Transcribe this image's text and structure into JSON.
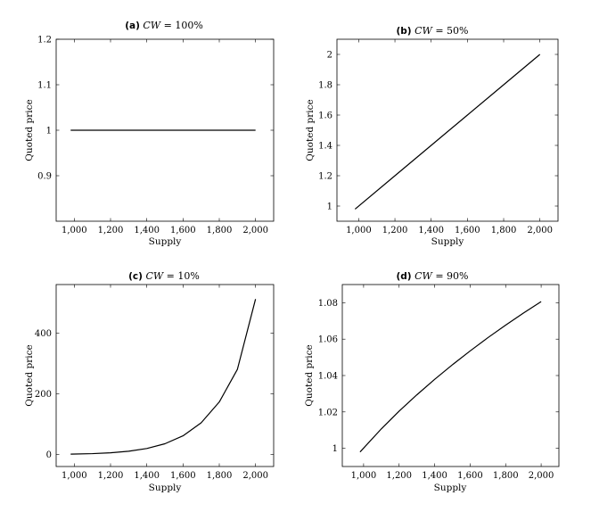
{
  "chart_data": [
    {
      "type": "line",
      "panel": "a",
      "title_prefix": "(a)",
      "title_var": "CW",
      "title_rest": " = 100%",
      "xlabel": "Supply",
      "ylabel": "Quoted price",
      "xlim": [
        900,
        2100
      ],
      "ylim": [
        0.8,
        1.2
      ],
      "xticks": [
        1000,
        1200,
        1400,
        1600,
        1800,
        2000
      ],
      "xtick_labels": [
        "1,000",
        "1,200",
        "1,400",
        "1,600",
        "1,800",
        "2,000"
      ],
      "yticks": [
        0.9,
        1,
        1.1,
        1.2
      ],
      "ytick_labels": [
        "0.9",
        "1",
        "1.1",
        "1.2"
      ],
      "grid": false,
      "series": [
        {
          "x": [
            980,
            1200,
            1400,
            1600,
            1800,
            2000
          ],
          "y": [
            1,
            1,
            1,
            1,
            1,
            1
          ]
        }
      ]
    },
    {
      "type": "line",
      "panel": "b",
      "title_prefix": "(b)",
      "title_var": "CW",
      "title_rest": " = 50%",
      "xlabel": "Supply",
      "ylabel": "Quoted price",
      "xlim": [
        880,
        2100
      ],
      "ylim": [
        0.9,
        2.1
      ],
      "xticks": [
        1000,
        1200,
        1400,
        1600,
        1800,
        2000
      ],
      "xtick_labels": [
        "1,000",
        "1,200",
        "1,400",
        "1,600",
        "1,800",
        "2,000"
      ],
      "yticks": [
        1,
        1.2,
        1.4,
        1.6,
        1.8,
        2
      ],
      "ytick_labels": [
        "1",
        "1.2",
        "1.4",
        "1.6",
        "1.8",
        "2"
      ],
      "grid": false,
      "series": [
        {
          "x": [
            980,
            1200,
            1400,
            1600,
            1800,
            2000
          ],
          "y": [
            0.98,
            1.2,
            1.4,
            1.6,
            1.8,
            2.0
          ]
        }
      ]
    },
    {
      "type": "line",
      "panel": "c",
      "title_prefix": "(c)",
      "title_var": "CW",
      "title_rest": " = 10%",
      "xlabel": "Supply",
      "ylabel": "Quoted price",
      "xlim": [
        900,
        2100
      ],
      "ylim": [
        -40,
        560
      ],
      "xticks": [
        1000,
        1200,
        1400,
        1600,
        1800,
        2000
      ],
      "xtick_labels": [
        "1,000",
        "1,200",
        "1,400",
        "1,600",
        "1,800",
        "2,000"
      ],
      "yticks": [
        0,
        200,
        400
      ],
      "ytick_labels": [
        "0",
        "200",
        "400"
      ],
      "grid": false,
      "series": [
        {
          "x": [
            980,
            1100,
            1200,
            1300,
            1400,
            1500,
            1600,
            1700,
            1800,
            1900,
            2000
          ],
          "y": [
            0.8,
            2.4,
            5.2,
            10.3,
            19.3,
            35.0,
            61.2,
            104.1,
            172.8,
            280.5,
            512.0
          ]
        }
      ]
    },
    {
      "type": "line",
      "panel": "d",
      "title_prefix": "(d)",
      "title_var": "CW",
      "title_rest": " = 90%",
      "xlabel": "Supply",
      "ylabel": "Quoted price",
      "xlim": [
        880,
        2100
      ],
      "ylim": [
        0.99,
        1.09
      ],
      "xticks": [
        1000,
        1200,
        1400,
        1600,
        1800,
        2000
      ],
      "xtick_labels": [
        "1,000",
        "1,200",
        "1,400",
        "1,600",
        "1,800",
        "2,000"
      ],
      "yticks": [
        1,
        1.02,
        1.04,
        1.06,
        1.08
      ],
      "ytick_labels": [
        "1",
        "1.02",
        "1.04",
        "1.06",
        "1.08"
      ],
      "grid": false,
      "series": [
        {
          "x": [
            980,
            1100,
            1200,
            1300,
            1400,
            1500,
            1600,
            1700,
            1800,
            1900,
            2000
          ],
          "y": [
            0.998,
            1.0107,
            1.0204,
            1.0294,
            1.0379,
            1.0459,
            1.0535,
            1.0608,
            1.0677,
            1.0743,
            1.0806
          ]
        }
      ]
    }
  ]
}
